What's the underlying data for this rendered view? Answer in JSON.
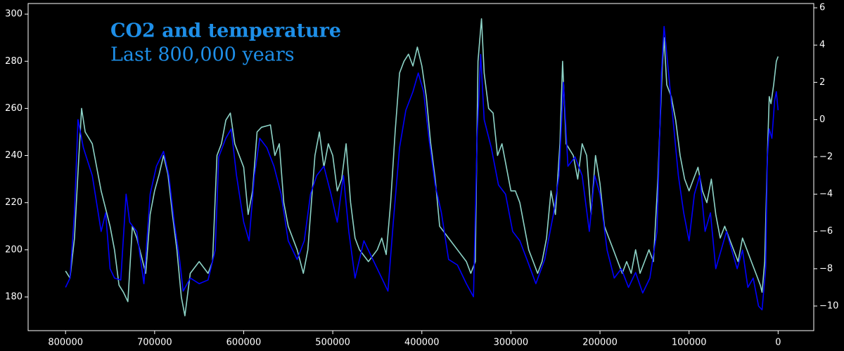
{
  "chart_data": {
    "type": "line",
    "title": "CO2 and temperature",
    "subtitle": "Last 800,000 years",
    "xlim": [
      842000,
      -40000
    ],
    "ylim": [
      165.7,
      304.5
    ],
    "y2lim": [
      -11.32,
      6.23
    ],
    "xticks": [
      0,
      100000,
      200000,
      300000,
      400000,
      500000,
      600000,
      700000,
      800000
    ],
    "yticks": [
      180,
      200,
      220,
      240,
      260,
      280,
      300
    ],
    "y2ticks": [
      {
        "value": -10,
        "label": "−10"
      },
      {
        "value": -8,
        "label": "−8"
      },
      {
        "value": -6,
        "label": "−6"
      },
      {
        "value": -4,
        "label": "−4"
      },
      {
        "value": -2,
        "label": "−2"
      },
      0,
      2,
      4,
      6
    ],
    "series": [
      {
        "name": "CO2",
        "color": "#8dd3c7",
        "axis": "y",
        "x": [
          800000,
          795000,
          790000,
          785000,
          782000,
          778000,
          770000,
          760000,
          750000,
          745000,
          740000,
          735000,
          730000,
          725000,
          720000,
          710000,
          705000,
          700000,
          695000,
          690000,
          685000,
          680000,
          675000,
          670000,
          666000,
          660000,
          650000,
          640000,
          635000,
          630000,
          625000,
          620000,
          615000,
          610000,
          600000,
          595000,
          590000,
          585000,
          580000,
          570000,
          565000,
          560000,
          555000,
          550000,
          540000,
          533000,
          528000,
          520000,
          515000,
          510000,
          505000,
          500000,
          495000,
          490000,
          485000,
          480000,
          475000,
          470000,
          460000,
          450000,
          445000,
          440000,
          435000,
          430000,
          425000,
          420000,
          415000,
          410000,
          405000,
          400000,
          395000,
          390000,
          385000,
          380000,
          370000,
          360000,
          350000,
          345000,
          340000,
          337000,
          333000,
          330000,
          325000,
          320000,
          315000,
          310000,
          300000,
          295000,
          290000,
          285000,
          280000,
          275000,
          270000,
          265000,
          260000,
          255000,
          250000,
          245000,
          242000,
          238000,
          230000,
          225000,
          220000,
          215000,
          210000,
          205000,
          200000,
          195000,
          190000,
          185000,
          180000,
          175000,
          170000,
          165000,
          160000,
          155000,
          150000,
          145000,
          140000,
          135000,
          130000,
          128000,
          125000,
          120000,
          115000,
          110000,
          105000,
          100000,
          95000,
          90000,
          85000,
          80000,
          75000,
          70000,
          65000,
          60000,
          55000,
          50000,
          45000,
          40000,
          35000,
          30000,
          25000,
          20000,
          18000,
          15000,
          12000,
          10000,
          8000,
          5000,
          2000,
          0
        ],
        "values": [
          191,
          188,
          205,
          240,
          260,
          250,
          245,
          225,
          210,
          200,
          185,
          182,
          178,
          210,
          205,
          190,
          215,
          225,
          232,
          240,
          232,
          215,
          200,
          180,
          172,
          190,
          195,
          190,
          195,
          240,
          245,
          255,
          258,
          245,
          235,
          215,
          225,
          250,
          252,
          253,
          240,
          245,
          220,
          210,
          200,
          190,
          200,
          240,
          250,
          235,
          245,
          240,
          225,
          230,
          245,
          220,
          205,
          200,
          195,
          200,
          205,
          198,
          220,
          250,
          275,
          280,
          283,
          278,
          286,
          278,
          265,
          245,
          230,
          210,
          205,
          200,
          195,
          190,
          195,
          280,
          298,
          275,
          260,
          258,
          240,
          245,
          225,
          225,
          220,
          210,
          200,
          195,
          190,
          195,
          205,
          225,
          215,
          245,
          280,
          245,
          240,
          230,
          245,
          240,
          215,
          240,
          228,
          210,
          205,
          200,
          195,
          190,
          195,
          190,
          200,
          190,
          195,
          200,
          195,
          230,
          278,
          290,
          270,
          265,
          255,
          240,
          230,
          225,
          230,
          235,
          225,
          220,
          230,
          215,
          205,
          210,
          205,
          200,
          195,
          205,
          200,
          195,
          190,
          185,
          182,
          195,
          240,
          265,
          262,
          270,
          280,
          282
        ]
      },
      {
        "name": "Temperature",
        "color": "#0000ff",
        "axis": "y2",
        "x": [
          800000,
          795000,
          790000,
          786000,
          780000,
          770000,
          760000,
          755000,
          750000,
          745000,
          738000,
          732000,
          728000,
          720000,
          712000,
          705000,
          698000,
          690000,
          684000,
          678000,
          672000,
          668000,
          660000,
          650000,
          640000,
          632000,
          628000,
          620000,
          614000,
          608000,
          600000,
          594000,
          588000,
          582000,
          574000,
          566000,
          558000,
          550000,
          540000,
          532000,
          525000,
          518000,
          510000,
          502000,
          495000,
          488000,
          482000,
          475000,
          465000,
          455000,
          445000,
          438000,
          432000,
          425000,
          418000,
          410000,
          404000,
          398000,
          392000,
          385000,
          378000,
          370000,
          360000,
          350000,
          342000,
          338000,
          334000,
          330000,
          322000,
          314000,
          306000,
          298000,
          290000,
          282000,
          272000,
          262000,
          252000,
          246000,
          241000,
          236000,
          228000,
          220000,
          212000,
          206000,
          200000,
          192000,
          184000,
          176000,
          168000,
          160000,
          152000,
          144000,
          136000,
          131000,
          128000,
          124000,
          118000,
          112000,
          106000,
          100000,
          94000,
          88000,
          82000,
          76000,
          70000,
          64000,
          58000,
          52000,
          46000,
          40000,
          34000,
          28000,
          22000,
          18000,
          14000,
          12000,
          10000,
          7000,
          4000,
          2000,
          0
        ],
        "values": [
          -9.0,
          -8.5,
          -5,
          0,
          -1.5,
          -3,
          -6,
          -5,
          -8,
          -8.5,
          -8.6,
          -4,
          -5.5,
          -6,
          -8.8,
          -4,
          -2.5,
          -1.7,
          -3,
          -5.5,
          -7.5,
          -9.2,
          -8.5,
          -8.8,
          -8.6,
          -7,
          -2,
          -1,
          -0.5,
          -3,
          -5.5,
          -6.5,
          -3,
          -1,
          -1.5,
          -2.5,
          -4,
          -6.5,
          -7.5,
          -6.5,
          -4,
          -3,
          -2.5,
          -4,
          -5.5,
          -3,
          -6,
          -8.5,
          -6.5,
          -7.5,
          -8.5,
          -9.2,
          -5.5,
          -1.5,
          0.5,
          1.5,
          2.5,
          1.5,
          -1,
          -3.5,
          -5,
          -7.5,
          -7.8,
          -8.8,
          -9.5,
          -1,
          3.5,
          0,
          -1.5,
          -3.5,
          -4,
          -6,
          -6.5,
          -7.5,
          -8.8,
          -7.5,
          -5,
          -3,
          2,
          -2.5,
          -2,
          -3,
          -6,
          -3,
          -4,
          -7,
          -8.5,
          -8,
          -9,
          -8.2,
          -9.3,
          -8.5,
          -6,
          2.5,
          5,
          3,
          0,
          -3,
          -5,
          -6.5,
          -4,
          -3,
          -6,
          -5,
          -8,
          -7,
          -6,
          -7,
          -8,
          -7,
          -9,
          -8.5,
          -10,
          -10.2,
          -8,
          -2,
          -0.5,
          -1,
          1,
          1.5,
          0.5
        ]
      }
    ]
  }
}
